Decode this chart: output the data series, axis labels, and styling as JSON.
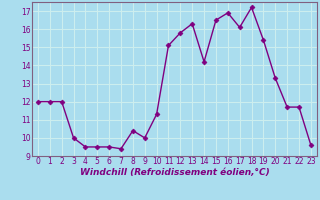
{
  "x": [
    0,
    1,
    2,
    3,
    4,
    5,
    6,
    7,
    8,
    9,
    10,
    11,
    12,
    13,
    14,
    15,
    16,
    17,
    18,
    19,
    20,
    21,
    22,
    23
  ],
  "y": [
    12.0,
    12.0,
    12.0,
    10.0,
    9.5,
    9.5,
    9.5,
    9.4,
    10.4,
    10.0,
    11.3,
    15.1,
    15.8,
    16.3,
    14.2,
    16.5,
    16.9,
    16.1,
    17.2,
    15.4,
    13.3,
    11.7,
    11.7,
    9.6
  ],
  "line_color": "#800080",
  "marker": "D",
  "marker_size": 2.5,
  "linewidth": 1.0,
  "bg_color": "#aaddee",
  "grid_color": "#cceeee",
  "xlabel": "Windchill (Refroidissement éolien,°C)",
  "xlim": [
    -0.5,
    23.5
  ],
  "ylim": [
    9,
    17.5
  ],
  "yticks": [
    9,
    10,
    11,
    12,
    13,
    14,
    15,
    16,
    17
  ],
  "xticks": [
    0,
    1,
    2,
    3,
    4,
    5,
    6,
    7,
    8,
    9,
    10,
    11,
    12,
    13,
    14,
    15,
    16,
    17,
    18,
    19,
    20,
    21,
    22,
    23
  ],
  "tick_fontsize": 5.5,
  "xlabel_fontsize": 6.5,
  "spine_color": "#806080"
}
